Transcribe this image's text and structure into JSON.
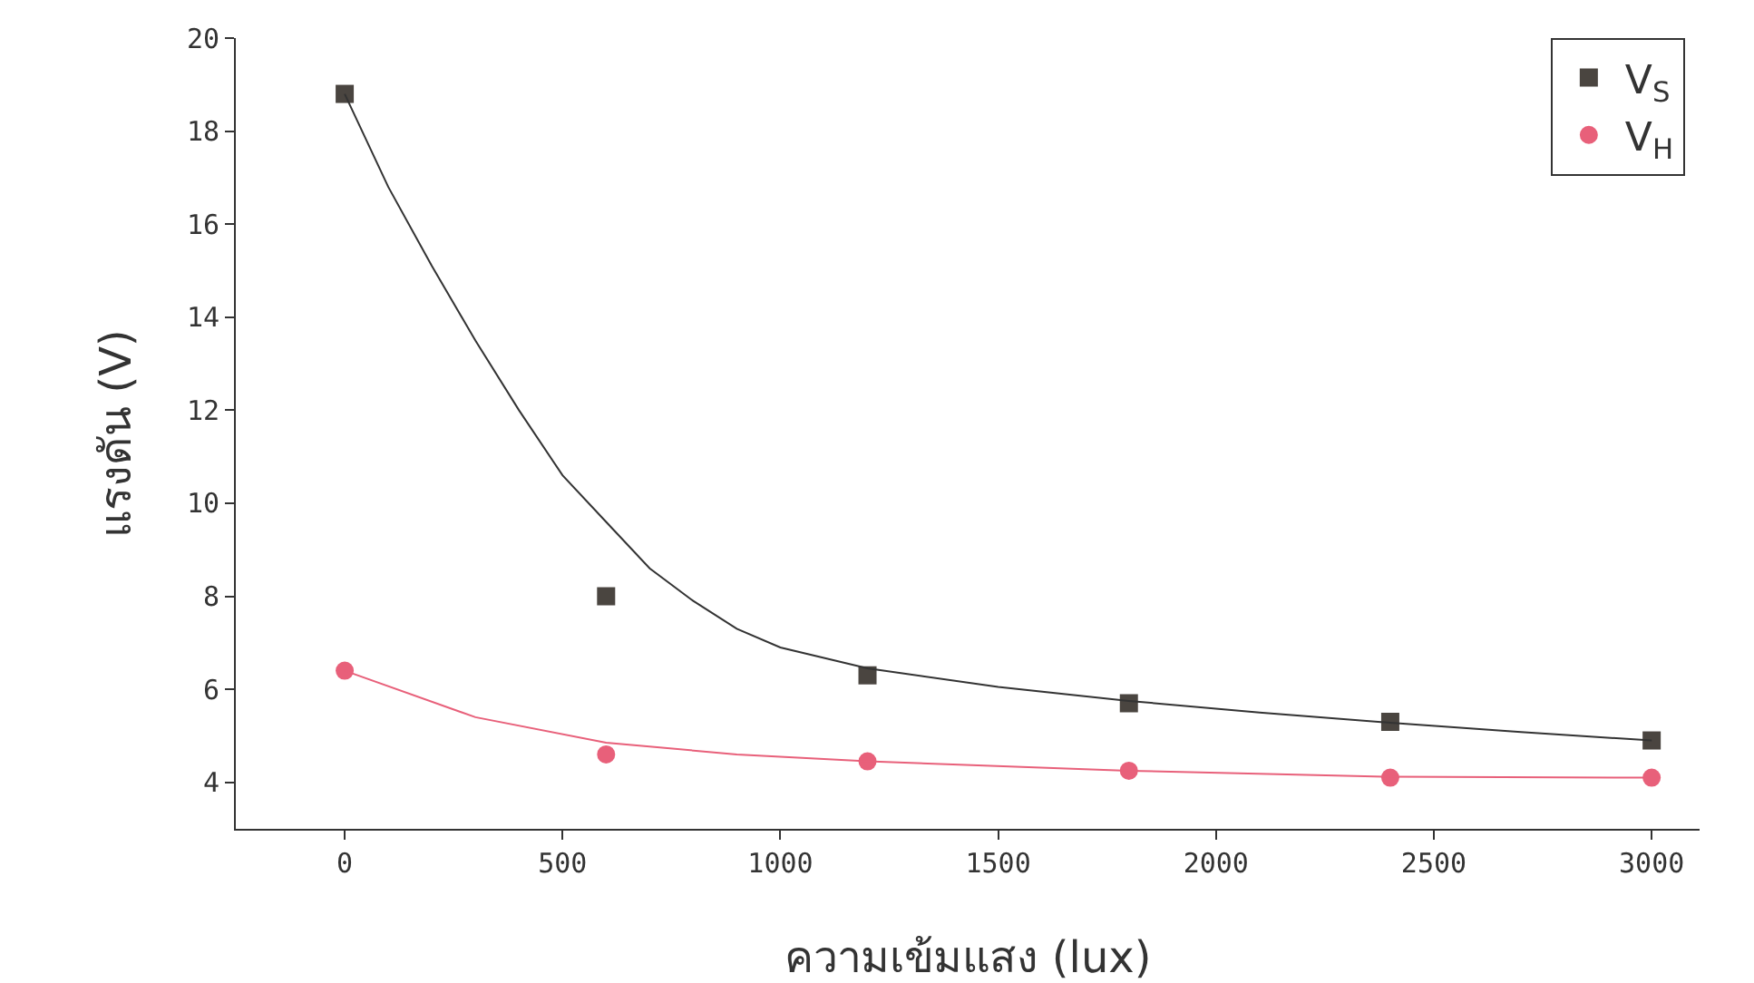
{
  "chart_data": {
    "type": "scatter",
    "xlabel": "ความเข้มแสง (lux)",
    "ylabel": "แรงดัน (V)",
    "x": [
      0,
      600,
      1200,
      1800,
      2400,
      3000
    ],
    "series": [
      {
        "name": "V$_{S}$",
        "color": "#4a4540",
        "marker": "square",
        "values": [
          18.8,
          8.0,
          6.3,
          5.7,
          5.3,
          4.9
        ]
      },
      {
        "name": "V$_{H}$",
        "color": "#e8607a",
        "marker": "circle",
        "values": [
          6.4,
          4.6,
          4.45,
          4.25,
          4.1,
          4.1
        ]
      },
      {
        "type": "line",
        "color": "#333333",
        "marker": "none",
        "x": [
          0,
          100,
          200,
          300,
          400,
          500,
          600,
          700,
          800,
          900,
          1000,
          1200,
          1500,
          1800,
          2100,
          2400,
          2700,
          3000
        ],
        "values": [
          18.8,
          16.8,
          15.1,
          13.5,
          12.0,
          10.6,
          9.6,
          8.6,
          7.9,
          7.3,
          6.9,
          6.45,
          6.05,
          5.75,
          5.5,
          5.28,
          5.08,
          4.9
        ]
      },
      {
        "type": "line",
        "color": "#e8607a",
        "marker": "none",
        "x": [
          0,
          300,
          600,
          900,
          1200,
          1800,
          2400,
          3000
        ],
        "values": [
          6.4,
          5.4,
          4.85,
          4.6,
          4.45,
          4.25,
          4.12,
          4.1
        ]
      }
    ],
    "xlim": [
      -250,
      3110
    ],
    "xticks": [
      0,
      500,
      1000,
      1500,
      2000,
      2500,
      3000
    ],
    "ylim": [
      3,
      20
    ],
    "yticks": [
      4,
      6,
      8,
      10,
      12,
      14,
      16,
      18,
      20
    ],
    "grid": false,
    "legend": "top right"
  }
}
